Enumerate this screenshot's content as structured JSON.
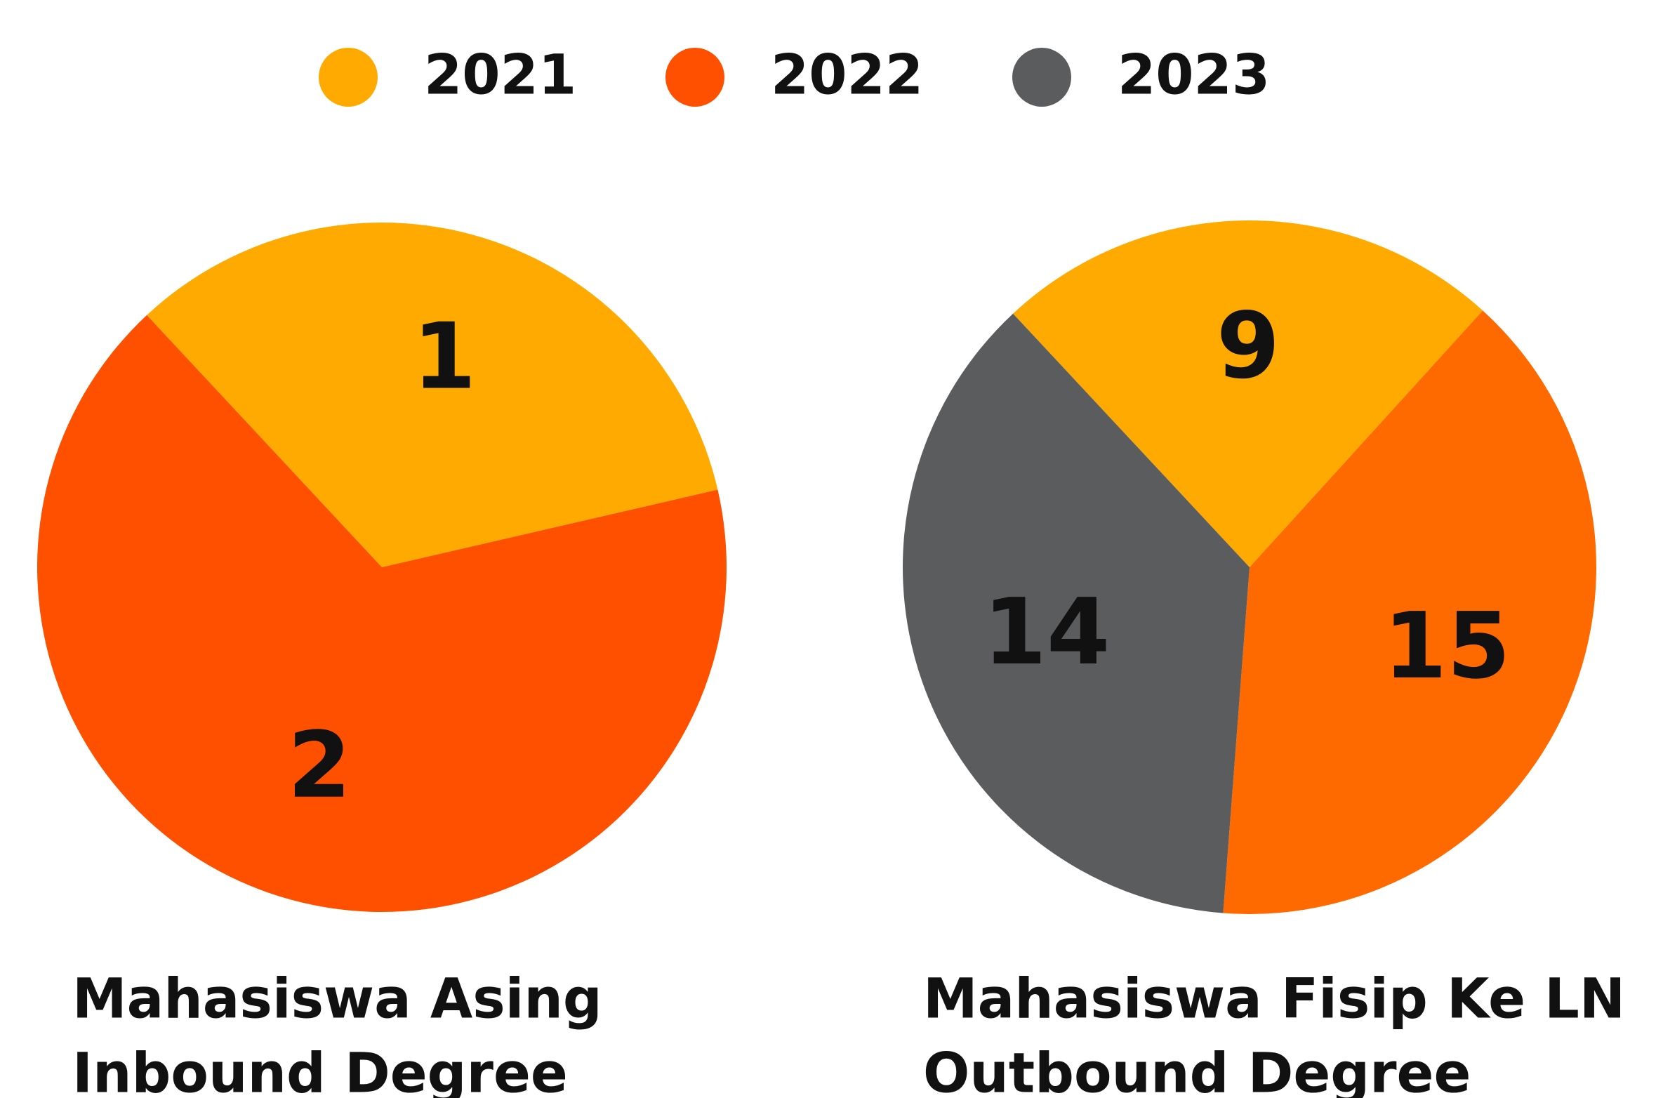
{
  "chart_data": [
    {
      "type": "pie",
      "title": [
        "Mahasiswa Asing",
        "Inbound Degree"
      ],
      "categories": [
        "2021",
        "2022"
      ],
      "values": [
        1,
        2
      ],
      "colors": [
        "#FFAA00",
        "#FF5000"
      ]
    },
    {
      "type": "pie",
      "title": [
        "Mahasiswa Fisip Ke LN",
        "Outbound Degree"
      ],
      "categories": [
        "2021",
        "2022",
        "2023"
      ],
      "values": [
        9,
        15,
        14
      ],
      "colors": [
        "#FFAA00",
        "#FF6A00",
        "#5B5C5E"
      ]
    }
  ]
}
